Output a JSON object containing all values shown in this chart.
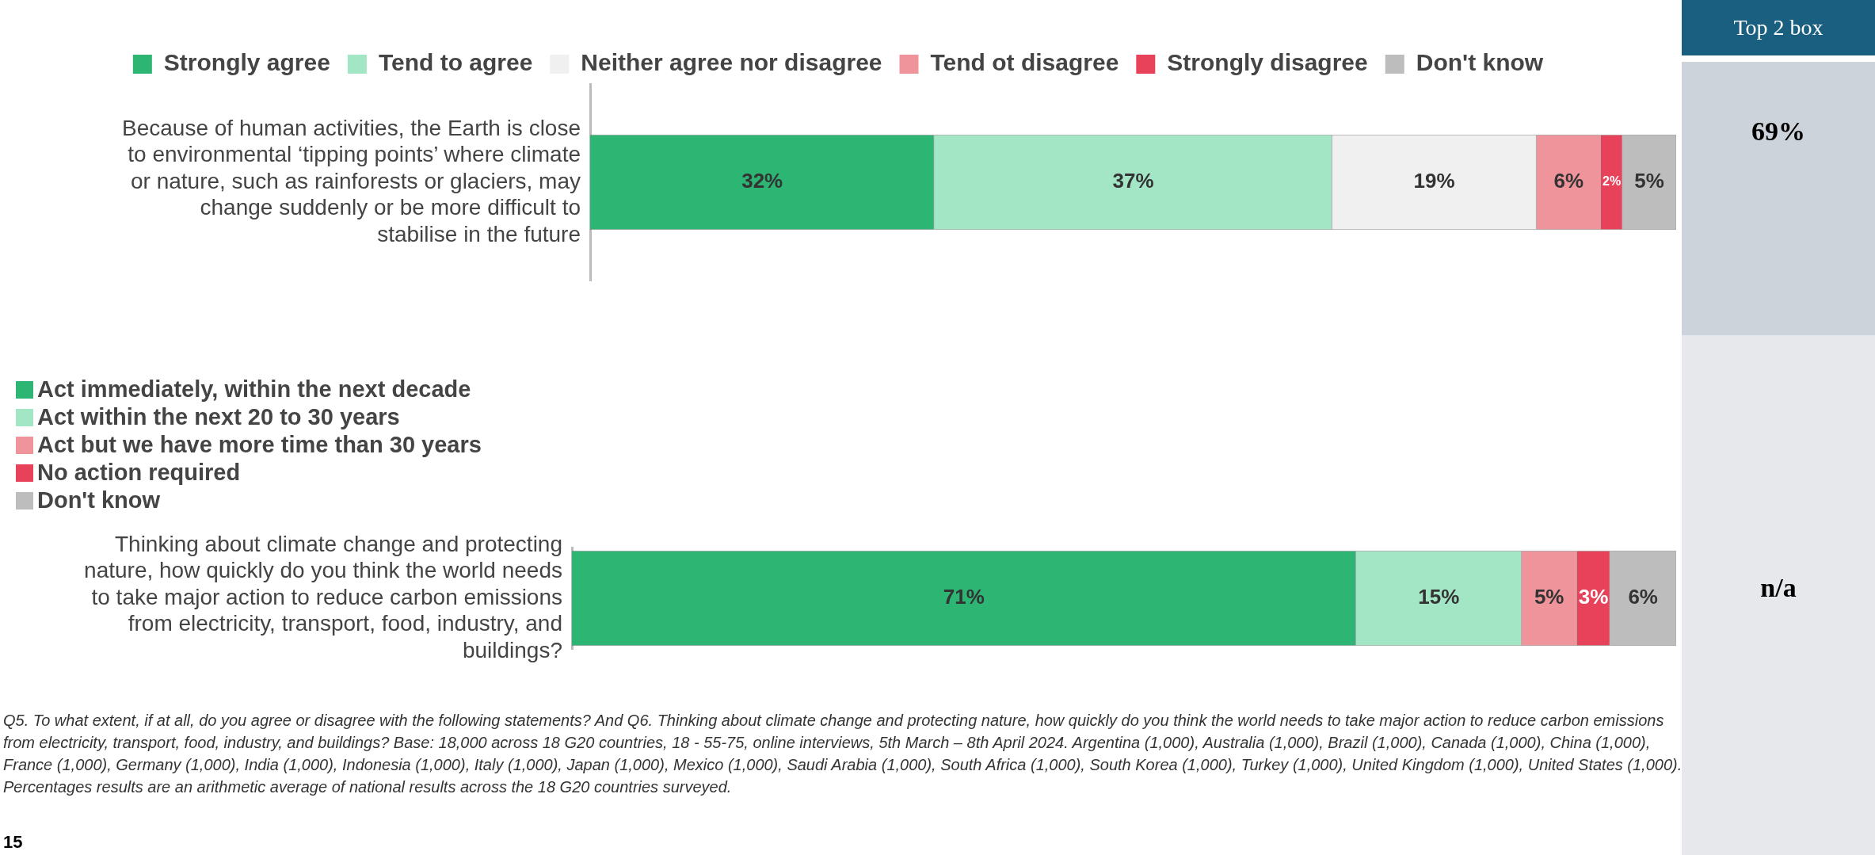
{
  "chart_data": [
    {
      "type": "bar",
      "orientation": "horizontal",
      "stacked": true,
      "legend": "top",
      "tick_labels": "y",
      "grid": false,
      "categories": [
        "Because of human activities, the Earth is close to environmental ‘tipping points’ where climate or nature, such as rainforests or glaciers, may change suddenly or be more difficult to stabilise in the future"
      ],
      "series": [
        {
          "name": "Strongly agree",
          "color": "#2db574",
          "values": [
            32
          ],
          "value_labels": [
            "32%"
          ]
        },
        {
          "name": "Tend to agree",
          "color": "#a3e6c6",
          "values": [
            37
          ],
          "value_labels": [
            "37%"
          ]
        },
        {
          "name": "Neither agree nor disagree",
          "color": "#f0f0f0",
          "values": [
            19
          ],
          "value_labels": [
            "19%"
          ]
        },
        {
          "name": "Tend ot disagree",
          "color": "#f0949b",
          "values": [
            6
          ],
          "value_labels": [
            "6%"
          ]
        },
        {
          "name": "Strongly disagree",
          "color": "#e8415a",
          "values": [
            2
          ],
          "value_labels": [
            "2%"
          ]
        },
        {
          "name": "Don't know",
          "color": "#bdbdbd",
          "values": [
            5
          ],
          "value_labels": [
            "5%"
          ]
        }
      ]
    },
    {
      "type": "bar",
      "orientation": "horizontal",
      "stacked": true,
      "legend": "top left",
      "tick_labels": "y",
      "grid": false,
      "categories": [
        "Thinking about climate change and protecting nature, how quickly do you think the world needs to take major action to reduce carbon emissions from electricity, transport, food, industry, and buildings?"
      ],
      "series": [
        {
          "name": "Act immediately, within the next decade",
          "color": "#2db574",
          "values": [
            71
          ],
          "value_labels": [
            "71%"
          ]
        },
        {
          "name": "Act within the next 20 to 30 years",
          "color": "#a3e6c6",
          "values": [
            15
          ],
          "value_labels": [
            "15%"
          ]
        },
        {
          "name": "Act but we have more time than 30 years",
          "color": "#f0949b",
          "values": [
            5
          ],
          "value_labels": [
            "5%"
          ]
        },
        {
          "name": "No action required",
          "color": "#e8415a",
          "values": [
            3
          ],
          "value_labels": [
            "3%"
          ]
        },
        {
          "name": "Don't know",
          "color": "#bdbdbd",
          "values": [
            6
          ],
          "value_labels": [
            "6%"
          ]
        }
      ],
      "annotations": [
        "Q5. To what extent, if at all, do you agree or disagree with the following statements? And Q6. Thinking about climate change and protecting nature, how quickly do you think the world needs to take major action to reduce carbon emissions from electricity, transport, food, industry, and buildings? Base: 18,000 across 18 G20 countries, 18 - 55-75, online interviews, 5th March – 8th April 2024. Argentina (1,000), Australia (1,000), Brazil (1,000), Canada (1,000), China (1,000), France (1,000), Germany (1,000), India (1,000), Indonesia (1,000), Italy (1,000), Japan (1,000), Mexico (1,000), Saudi Arabia (1,000), South Africa (1,000), South Korea (1,000), Turkey (1,000), United Kingdom (1,000), United States (1,000). Percentages results are an arithmetic average of national results across the 18 G20 countries surveyed.",
        "15"
      ]
    },
    {
      "type": "other",
      "title": "Top 2 box",
      "annotations": [
        "69%",
        "n/a"
      ]
    }
  ]
}
